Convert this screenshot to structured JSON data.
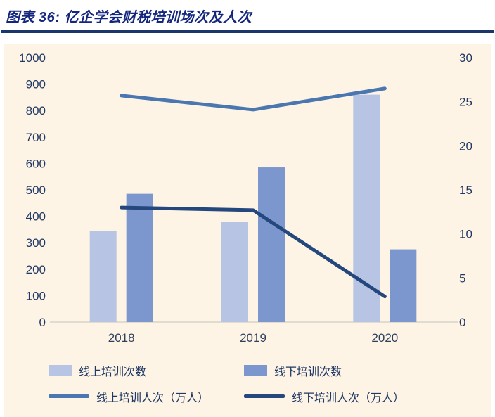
{
  "header": {
    "title": "图表 36: 亿企学会财税培训场次及人次"
  },
  "chart_data": {
    "type": "combo-bar-line",
    "title": "亿企学会财税培训场次及人次",
    "categories": [
      "2018",
      "2019",
      "2020"
    ],
    "bar_series": [
      {
        "name": "线上培训次数",
        "axis": "left",
        "color": "#b7c4e3",
        "values": [
          345,
          380,
          860
        ]
      },
      {
        "name": "线下培训次数",
        "axis": "left",
        "color": "#7b97cd",
        "values": [
          485,
          585,
          275
        ]
      }
    ],
    "line_series": [
      {
        "name": "线上培训人次（万人）",
        "axis": "right",
        "color": "#4a77b0",
        "values": [
          25.7,
          24.1,
          26.5
        ]
      },
      {
        "name": "线下培训人次（万人）",
        "axis": "right",
        "color": "#24477e",
        "values": [
          13,
          12.7,
          2.9
        ]
      }
    ],
    "left_axis": {
      "min": 0,
      "max": 1000,
      "step": 100
    },
    "right_axis": {
      "min": 0,
      "max": 30,
      "step": 5
    },
    "grid": false,
    "legend_position": "bottom",
    "plot_background": "#fdf4e6",
    "axis_line_color": "#c8c5bb"
  }
}
